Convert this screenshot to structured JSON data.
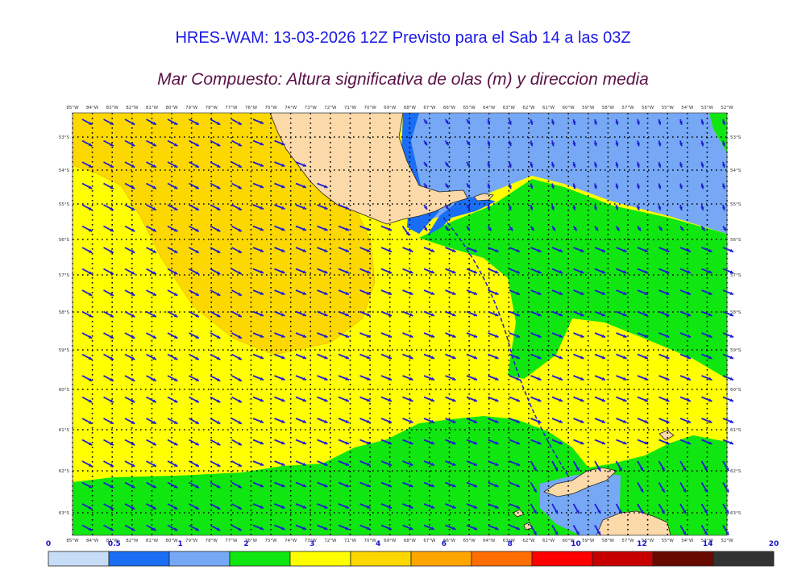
{
  "header": {
    "title": "HRES-WAM: 13-03-2026 12Z Previsto para el Sab 14 a las 03Z",
    "subtitle": "Mar Compuesto: Altura significativa de olas (m) y direccion media"
  },
  "map": {
    "lon_labels": [
      "85°W",
      "84°W",
      "83°W",
      "82°W",
      "81°W",
      "80°W",
      "79°W",
      "78°W",
      "77°W",
      "76°W",
      "75°W",
      "74°W",
      "73°W",
      "72°W",
      "71°W",
      "70°W",
      "69°W",
      "68°W",
      "67°W",
      "66°W",
      "65°W",
      "64°W",
      "63°W",
      "62°W",
      "61°W",
      "60°W",
      "59°W",
      "58°W",
      "57°W",
      "56°W",
      "55°W",
      "54°W",
      "53°W",
      "52°W"
    ],
    "lat_labels": [
      "53°S",
      "54°S",
      "55°S",
      "56°S",
      "57°S",
      "58°S",
      "59°S",
      "60°S",
      "61°S",
      "62°S",
      "63°S"
    ],
    "colors": {
      "land": "#fcd9a8",
      "coast": "#222222",
      "arrow": "#1e1ed2",
      "grid": "#000000",
      "track": "#1e1ed2"
    }
  },
  "colorbar": {
    "labels": [
      "0",
      "0.5",
      "1",
      "2",
      "3",
      "4",
      "6",
      "8",
      "10",
      "12",
      "14",
      "20"
    ],
    "colors": [
      "#c6dcf7",
      "#1a6ef5",
      "#76a8f5",
      "#10e610",
      "#ffff00",
      "#fdd800",
      "#ffa500",
      "#ff6e00",
      "#ff0000",
      "#c80000",
      "#690a00",
      "#333333"
    ]
  }
}
